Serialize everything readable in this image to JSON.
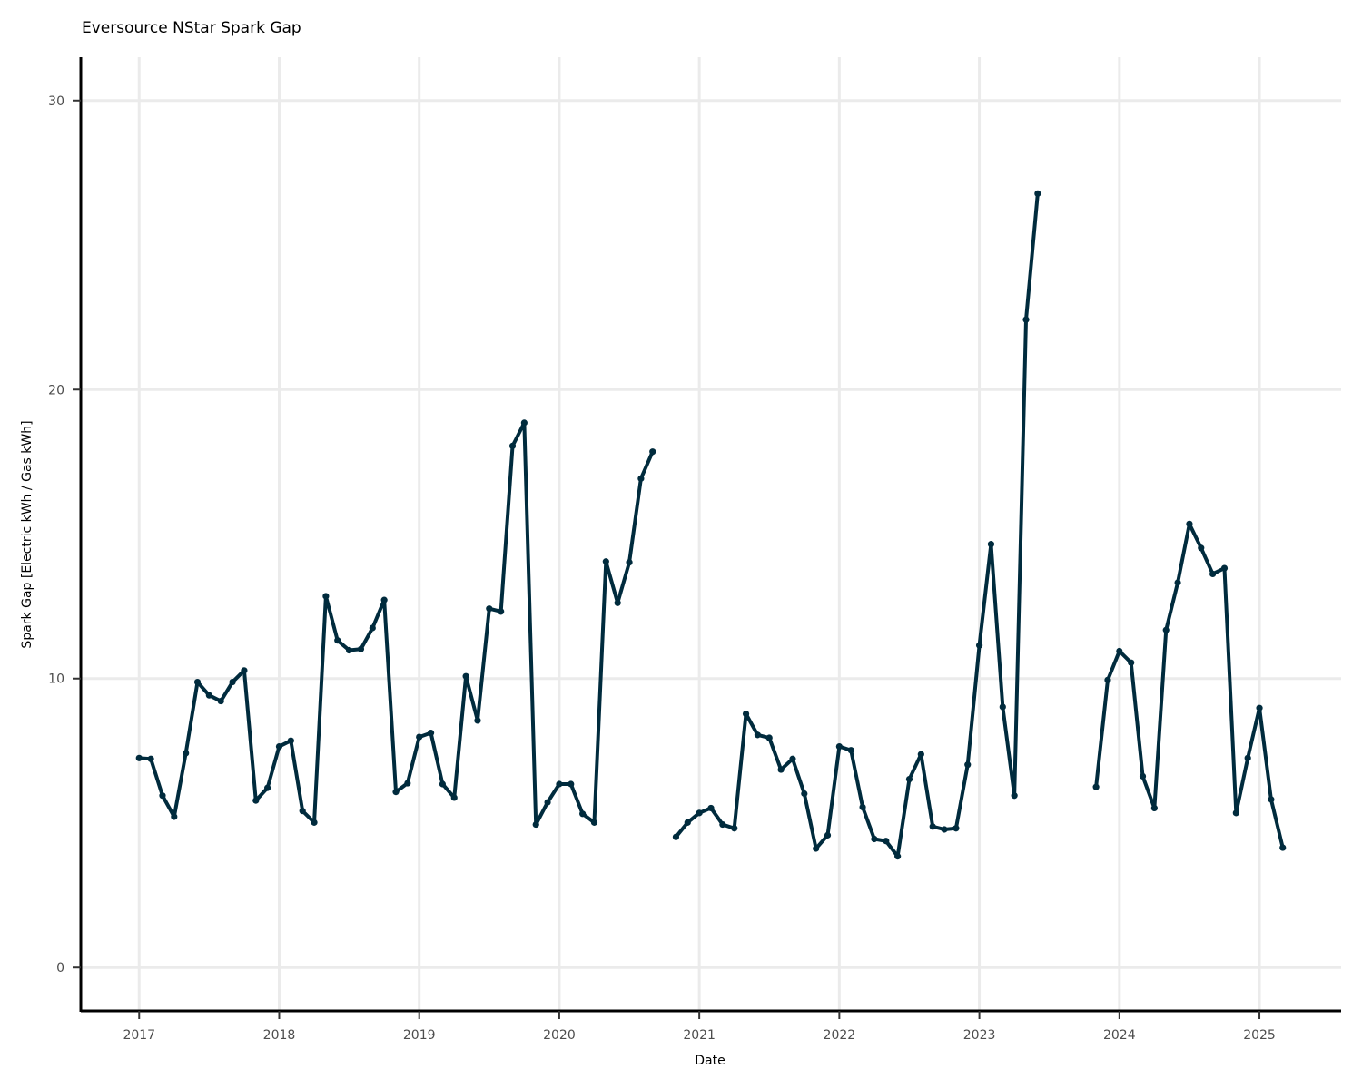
{
  "chart_data": {
    "type": "line",
    "title": "Eversource NStar Spark Gap",
    "xlabel": "Date",
    "ylabel": "Spark Gap [Electric kWh / Gas kWh]",
    "xlim": [
      "2016-08-01",
      "2025-08-01"
    ],
    "ylim": [
      -1.5,
      31.5
    ],
    "x_ticks": [
      "2017",
      "2018",
      "2019",
      "2020",
      "2021",
      "2022",
      "2023",
      "2024",
      "2025"
    ],
    "y_ticks": [
      0,
      10,
      20,
      30
    ],
    "grid": true,
    "legend": "none",
    "series_color": "#002b3d",
    "series": [
      {
        "segments": [
          [
            [
              "2017-01",
              7.25
            ],
            [
              "2017-02",
              7.22
            ],
            [
              "2017-03",
              5.95
            ],
            [
              "2017-04",
              5.22
            ],
            [
              "2017-05",
              7.42
            ],
            [
              "2017-06",
              9.88
            ],
            [
              "2017-07",
              9.42
            ],
            [
              "2017-08",
              9.22
            ],
            [
              "2017-09",
              9.88
            ],
            [
              "2017-10",
              10.28
            ],
            [
              "2017-11",
              5.78
            ],
            [
              "2017-12",
              6.22
            ],
            [
              "2018-01",
              7.65
            ],
            [
              "2018-02",
              7.85
            ],
            [
              "2018-03",
              5.42
            ],
            [
              "2018-04",
              5.02
            ],
            [
              "2018-05",
              12.85
            ],
            [
              "2018-06",
              11.32
            ],
            [
              "2018-07",
              10.98
            ],
            [
              "2018-08",
              11.02
            ],
            [
              "2018-09",
              11.75
            ],
            [
              "2018-10",
              12.72
            ],
            [
              "2018-11",
              6.08
            ],
            [
              "2018-12",
              6.38
            ],
            [
              "2019-01",
              7.98
            ],
            [
              "2019-02",
              8.12
            ],
            [
              "2019-03",
              6.35
            ],
            [
              "2019-04",
              5.88
            ],
            [
              "2019-05",
              10.08
            ],
            [
              "2019-06",
              8.55
            ],
            [
              "2019-07",
              12.42
            ],
            [
              "2019-08",
              12.32
            ],
            [
              "2019-09",
              18.05
            ],
            [
              "2019-10",
              18.85
            ],
            [
              "2019-11",
              4.95
            ],
            [
              "2019-12",
              5.72
            ],
            [
              "2020-01",
              6.35
            ],
            [
              "2020-02",
              6.35
            ],
            [
              "2020-03",
              5.32
            ],
            [
              "2020-04",
              5.02
            ],
            [
              "2020-05",
              14.05
            ],
            [
              "2020-06",
              12.62
            ],
            [
              "2020-07",
              14.02
            ],
            [
              "2020-08",
              16.92
            ],
            [
              "2020-09",
              17.85
            ]
          ],
          [
            [
              "2020-11",
              4.52
            ],
            [
              "2020-12",
              5.02
            ],
            [
              "2021-01",
              5.35
            ],
            [
              "2021-02",
              5.52
            ],
            [
              "2021-03",
              4.95
            ],
            [
              "2021-04",
              4.82
            ],
            [
              "2021-05",
              8.78
            ],
            [
              "2021-06",
              8.05
            ],
            [
              "2021-07",
              7.95
            ],
            [
              "2021-08",
              6.85
            ],
            [
              "2021-09",
              7.22
            ],
            [
              "2021-10",
              6.02
            ],
            [
              "2021-11",
              4.12
            ],
            [
              "2021-12",
              4.58
            ],
            [
              "2022-01",
              7.65
            ],
            [
              "2022-02",
              7.52
            ],
            [
              "2022-03",
              5.55
            ],
            [
              "2022-04",
              4.45
            ],
            [
              "2022-05",
              4.38
            ],
            [
              "2022-06",
              3.85
            ],
            [
              "2022-07",
              6.52
            ],
            [
              "2022-08",
              7.38
            ],
            [
              "2022-09",
              4.88
            ],
            [
              "2022-10",
              4.78
            ],
            [
              "2022-11",
              4.82
            ],
            [
              "2022-12",
              7.02
            ],
            [
              "2023-01",
              11.15
            ],
            [
              "2023-02",
              14.65
            ],
            [
              "2023-03",
              9.02
            ],
            [
              "2023-04",
              5.95
            ],
            [
              "2023-05",
              22.42
            ],
            [
              "2023-06",
              26.78
            ]
          ],
          [
            [
              "2023-11",
              6.25
            ],
            [
              "2023-12",
              9.95
            ],
            [
              "2024-01",
              10.95
            ],
            [
              "2024-02",
              10.55
            ],
            [
              "2024-03",
              6.62
            ],
            [
              "2024-04",
              5.52
            ],
            [
              "2024-05",
              11.68
            ],
            [
              "2024-06",
              13.32
            ],
            [
              "2024-07",
              15.35
            ],
            [
              "2024-08",
              14.52
            ],
            [
              "2024-09",
              13.62
            ],
            [
              "2024-10",
              13.82
            ],
            [
              "2024-11",
              5.35
            ],
            [
              "2024-12",
              7.25
            ],
            [
              "2025-01",
              8.98
            ],
            [
              "2025-02",
              5.82
            ],
            [
              "2025-03",
              4.15
            ]
          ]
        ]
      }
    ]
  }
}
